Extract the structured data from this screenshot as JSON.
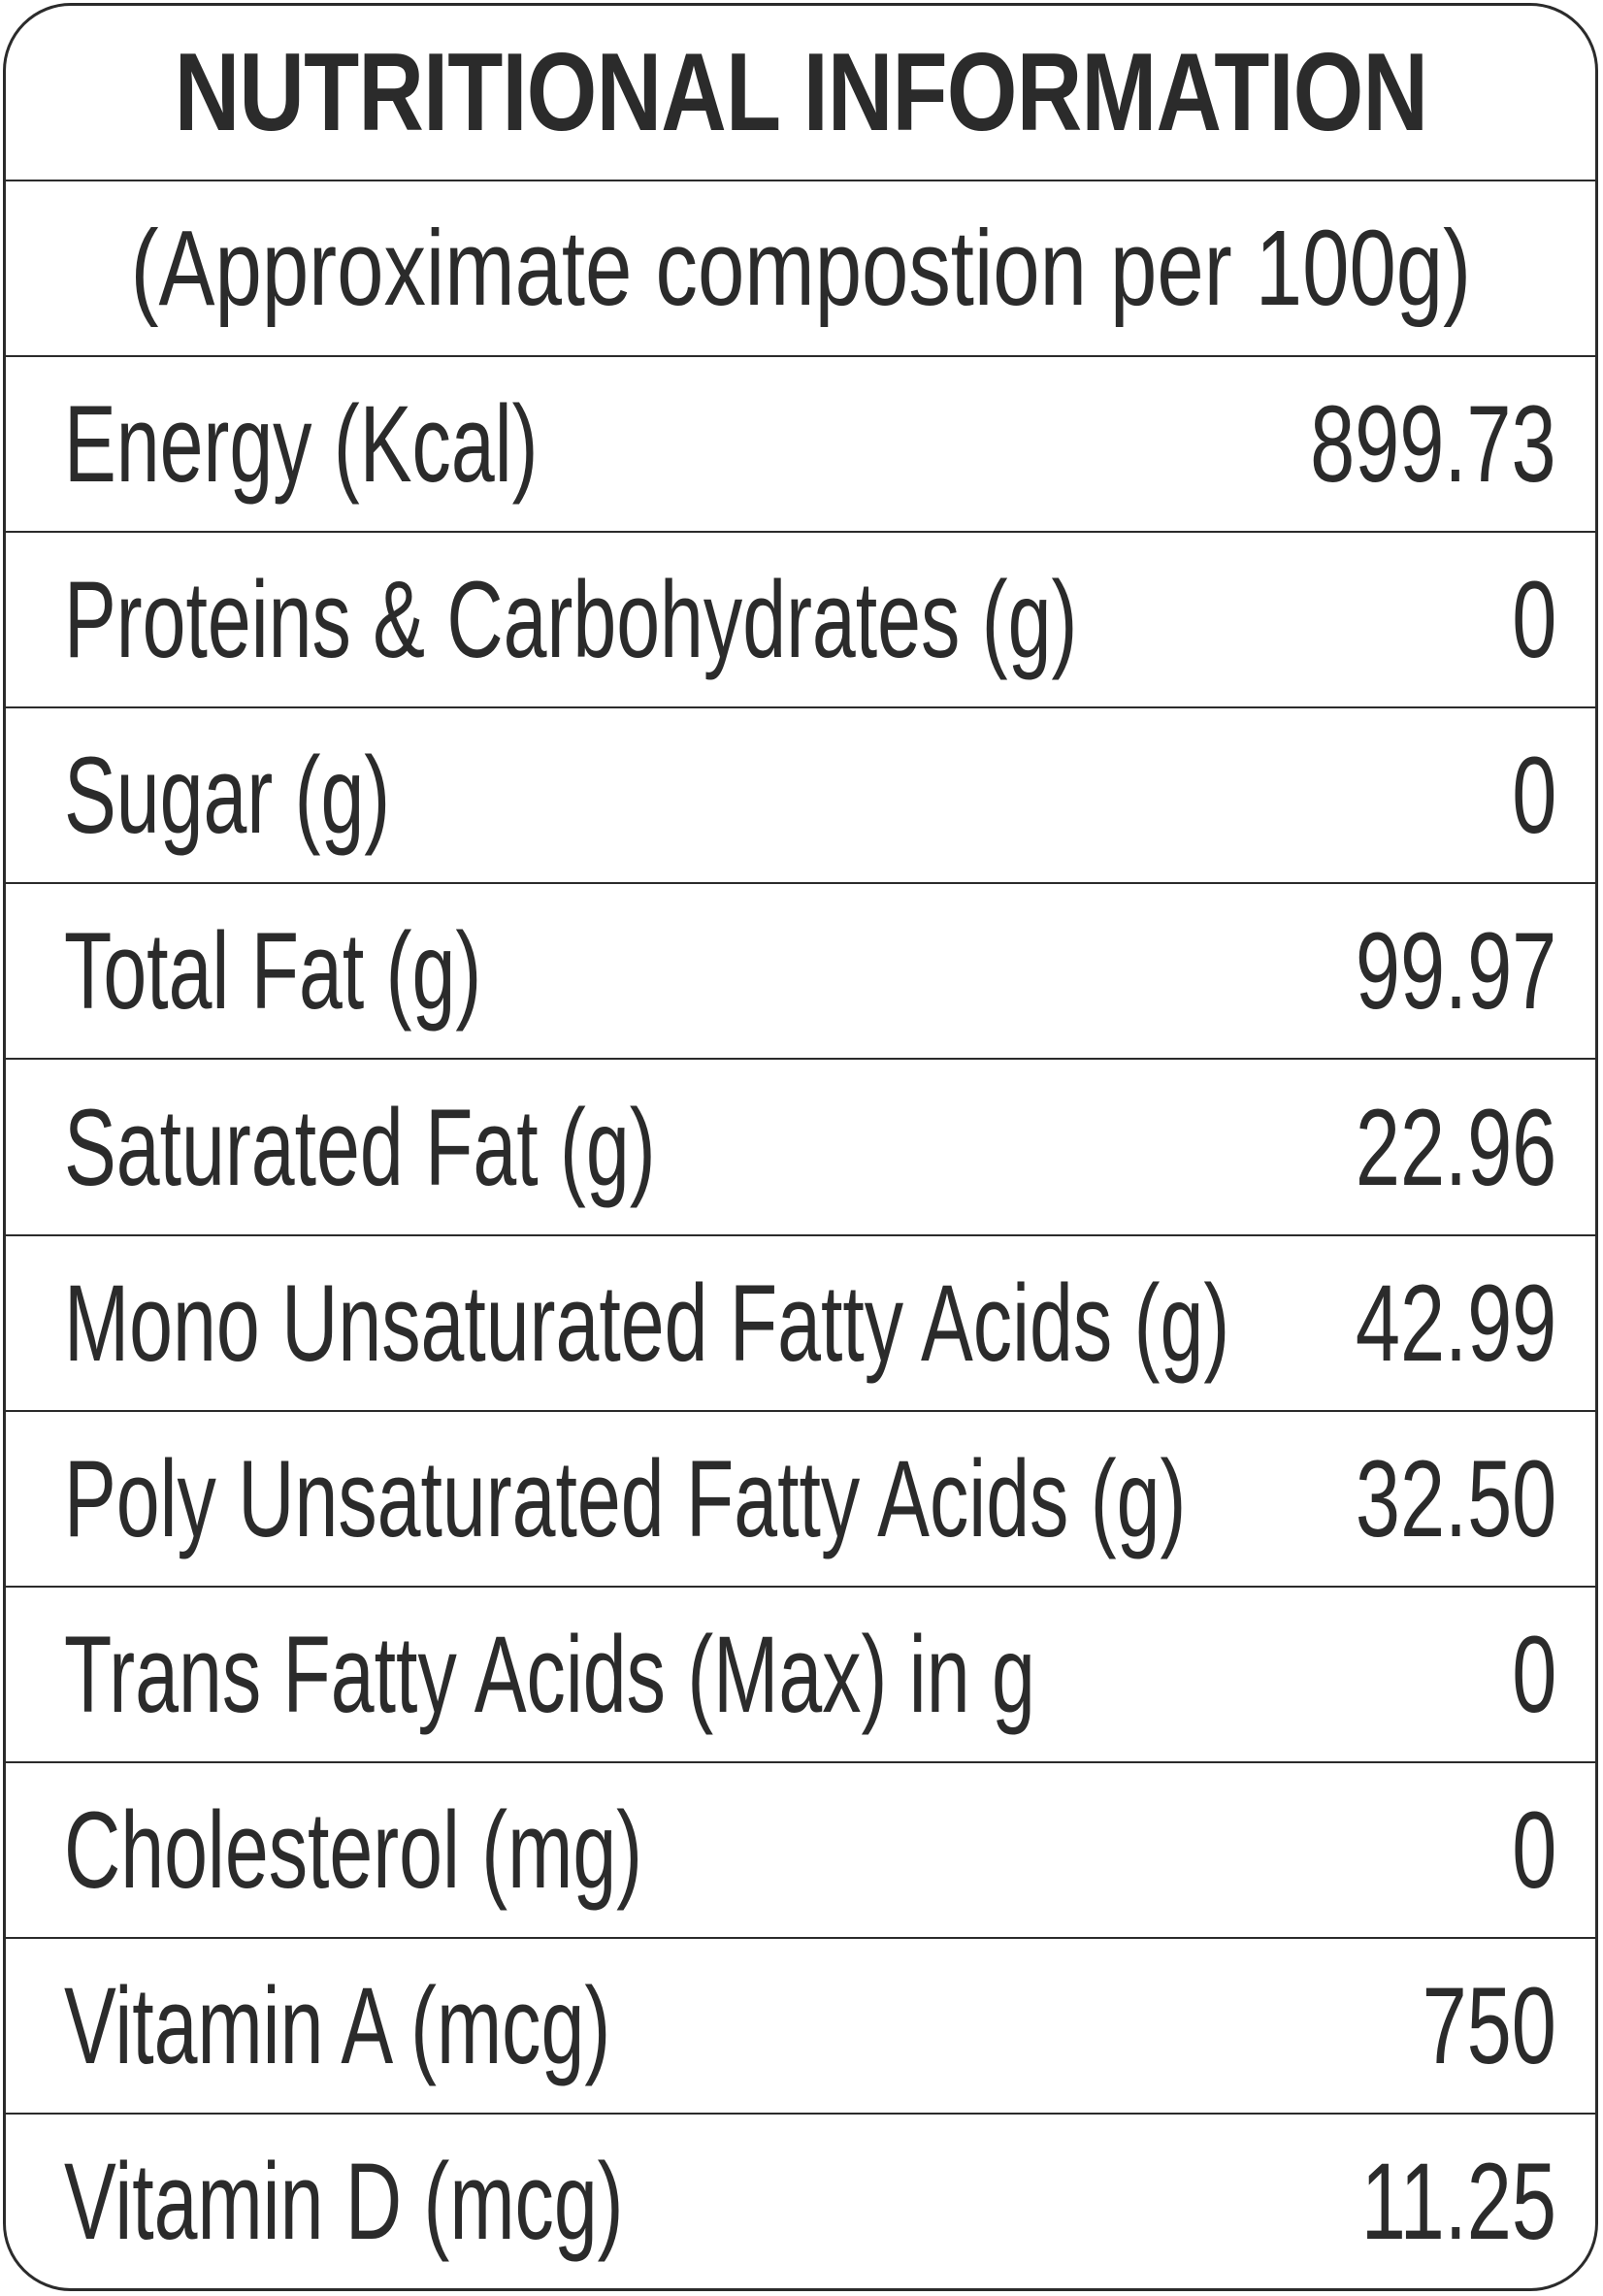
{
  "label": {
    "title": "NUTRITIONAL INFORMATION",
    "subtitle": "(Approximate compostion per 100g)",
    "rows": [
      {
        "name": "Energy (Kcal)",
        "value": "899.73"
      },
      {
        "name": "Proteins & Carbohydrates (g)",
        "value": "0"
      },
      {
        "name": "Sugar (g)",
        "value": "0"
      },
      {
        "name": "Total Fat (g)",
        "value": "99.97"
      },
      {
        "name": "Saturated Fat (g)",
        "value": "22.96"
      },
      {
        "name": "Mono Unsaturated Fatty Acids (g)",
        "value": "42.99"
      },
      {
        "name": "Poly Unsaturated Fatty Acids (g)",
        "value": "32.50"
      },
      {
        "name": "Trans Fatty Acids (Max) in g",
        "value": "0"
      },
      {
        "name": "Cholesterol (mg)",
        "value": "0"
      },
      {
        "name": "Vitamin A (mcg)",
        "value": "750"
      },
      {
        "name": "Vitamin D (mcg)",
        "value": "11.25"
      }
    ]
  },
  "colors": {
    "text": "#2b2b2b",
    "border": "#2b2b2b",
    "background": "#ffffff"
  }
}
